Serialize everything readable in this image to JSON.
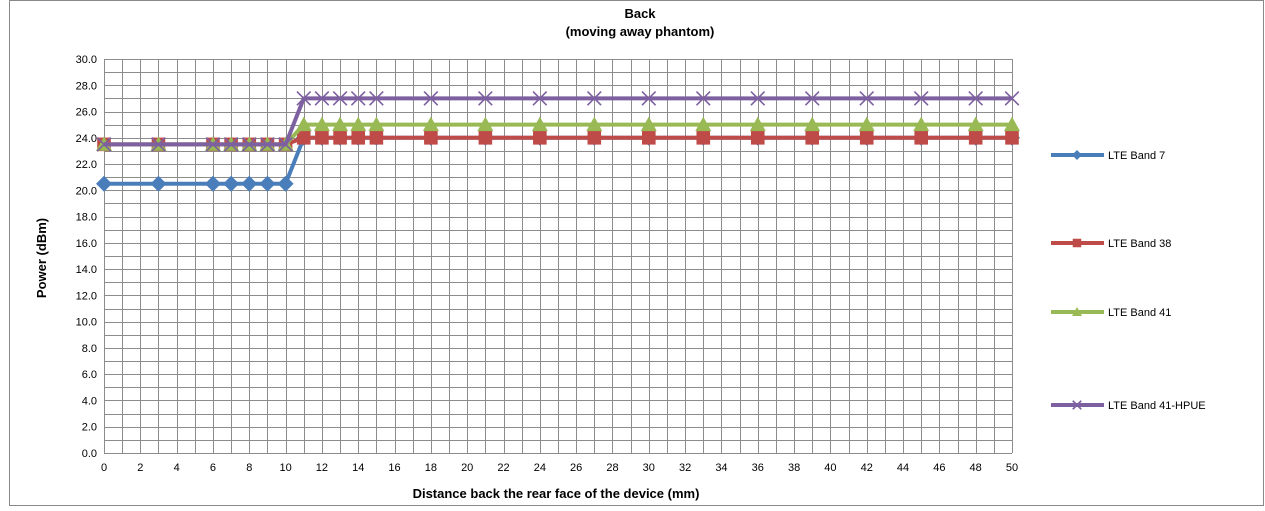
{
  "chart_data": {
    "type": "line",
    "title": "Back",
    "subtitle": "(moving away phantom)",
    "xlabel": "Distance back the rear face of the device (mm)",
    "ylabel": "Power (dBm)",
    "xlim": [
      0,
      50
    ],
    "ylim": [
      0,
      30
    ],
    "x_ticks": [
      0,
      2,
      4,
      6,
      8,
      10,
      12,
      14,
      16,
      18,
      20,
      22,
      24,
      26,
      28,
      30,
      32,
      34,
      36,
      38,
      40,
      42,
      44,
      46,
      48,
      50
    ],
    "y_ticks": [
      "0.0",
      "2.0",
      "4.0",
      "6.0",
      "8.0",
      "10.0",
      "12.0",
      "14.0",
      "16.0",
      "18.0",
      "20.0",
      "22.0",
      "24.0",
      "26.0",
      "28.0",
      "30.0"
    ],
    "grid": true,
    "legend_position": "right",
    "series": [
      {
        "name": "LTE Band 7",
        "color": "#4a7ebb",
        "marker": "diamond",
        "points": [
          [
            0,
            20.5
          ],
          [
            3,
            20.5
          ],
          [
            6,
            20.5
          ],
          [
            7,
            20.5
          ],
          [
            8,
            20.5
          ],
          [
            9,
            20.5
          ],
          [
            10,
            20.5
          ],
          [
            11,
            24
          ],
          [
            12,
            24
          ],
          [
            13,
            24
          ],
          [
            14,
            24
          ],
          [
            15,
            24
          ],
          [
            18,
            24
          ],
          [
            21,
            24
          ],
          [
            24,
            24
          ],
          [
            27,
            24
          ],
          [
            30,
            24
          ],
          [
            33,
            24
          ],
          [
            36,
            24
          ],
          [
            39,
            24
          ],
          [
            42,
            24
          ],
          [
            45,
            24
          ],
          [
            48,
            24
          ],
          [
            50,
            24
          ]
        ]
      },
      {
        "name": "LTE Band 38",
        "color": "#be4b48",
        "marker": "square",
        "points": [
          [
            0,
            23.5
          ],
          [
            3,
            23.5
          ],
          [
            6,
            23.5
          ],
          [
            7,
            23.5
          ],
          [
            8,
            23.5
          ],
          [
            9,
            23.5
          ],
          [
            10,
            23.5
          ],
          [
            11,
            24
          ],
          [
            12,
            24
          ],
          [
            13,
            24
          ],
          [
            14,
            24
          ],
          [
            15,
            24
          ],
          [
            18,
            24
          ],
          [
            21,
            24
          ],
          [
            24,
            24
          ],
          [
            27,
            24
          ],
          [
            30,
            24
          ],
          [
            33,
            24
          ],
          [
            36,
            24
          ],
          [
            39,
            24
          ],
          [
            42,
            24
          ],
          [
            45,
            24
          ],
          [
            48,
            24
          ],
          [
            50,
            24
          ]
        ]
      },
      {
        "name": "LTE Band 41",
        "color": "#98b954",
        "marker": "triangle",
        "points": [
          [
            0,
            23.5
          ],
          [
            3,
            23.5
          ],
          [
            6,
            23.5
          ],
          [
            7,
            23.5
          ],
          [
            8,
            23.5
          ],
          [
            9,
            23.5
          ],
          [
            10,
            23.5
          ],
          [
            11,
            25
          ],
          [
            12,
            25
          ],
          [
            13,
            25
          ],
          [
            14,
            25
          ],
          [
            15,
            25
          ],
          [
            18,
            25
          ],
          [
            21,
            25
          ],
          [
            24,
            25
          ],
          [
            27,
            25
          ],
          [
            30,
            25
          ],
          [
            33,
            25
          ],
          [
            36,
            25
          ],
          [
            39,
            25
          ],
          [
            42,
            25
          ],
          [
            45,
            25
          ],
          [
            48,
            25
          ],
          [
            50,
            25
          ]
        ]
      },
      {
        "name": "LTE Band 41-HPUE",
        "color": "#7d60a0",
        "marker": "x",
        "points": [
          [
            0,
            23.5
          ],
          [
            3,
            23.5
          ],
          [
            6,
            23.5
          ],
          [
            7,
            23.5
          ],
          [
            8,
            23.5
          ],
          [
            9,
            23.5
          ],
          [
            10,
            23.5
          ],
          [
            11,
            27
          ],
          [
            12,
            27
          ],
          [
            13,
            27
          ],
          [
            14,
            27
          ],
          [
            15,
            27
          ],
          [
            18,
            27
          ],
          [
            21,
            27
          ],
          [
            24,
            27
          ],
          [
            27,
            27
          ],
          [
            30,
            27
          ],
          [
            33,
            27
          ],
          [
            36,
            27
          ],
          [
            39,
            27
          ],
          [
            42,
            27
          ],
          [
            45,
            27
          ],
          [
            48,
            27
          ],
          [
            50,
            27
          ]
        ]
      }
    ]
  }
}
